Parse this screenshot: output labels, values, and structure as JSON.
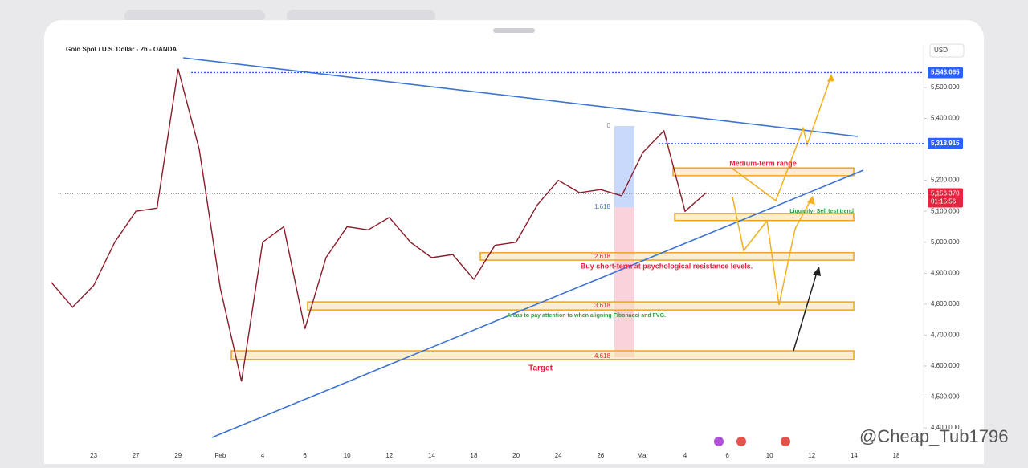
{
  "currency": "USD",
  "watermark": "@Cheap_Tub1796",
  "chart_data": {
    "type": "line",
    "title": "Gold Spot / U.S. Dollar - 2h - OANDA",
    "color": "#8a1c2b",
    "categories": [
      null,
      null,
      "23",
      null,
      "27",
      null,
      "29",
      null,
      "Feb",
      null,
      "4",
      null,
      "6",
      null,
      "10",
      null,
      "12",
      null,
      "14",
      null,
      "18",
      null,
      "20",
      null,
      "24",
      null,
      "26",
      null,
      "Mar",
      null,
      "4",
      null,
      "6",
      null,
      "10",
      null,
      "12",
      null,
      "14",
      null,
      "18"
    ],
    "values": [
      4870,
      4790,
      4860,
      5000,
      5100,
      5110,
      5560,
      5300,
      4850,
      4550,
      5000,
      5050,
      4720,
      4950,
      5050,
      5040,
      5080,
      5000,
      4950,
      4960,
      4880,
      4990,
      5000,
      5120,
      5200,
      5160,
      5170,
      5150,
      5290,
      5360,
      5100,
      5160,
      null,
      null,
      null,
      null,
      null,
      null,
      null,
      null,
      null
    ],
    "ylim": [
      4330,
      5640
    ],
    "yticks": [
      {
        "value": 5500,
        "label": "5,500.000"
      },
      {
        "value": 5400,
        "label": "5,400.000"
      },
      {
        "value": 5200,
        "label": "5,200.000"
      },
      {
        "value": 5100,
        "label": "5,100.000"
      },
      {
        "value": 5000,
        "label": "5,000.000"
      },
      {
        "value": 4900,
        "label": "4,900.000"
      },
      {
        "value": 4800,
        "label": "4,800.000"
      },
      {
        "value": 4700,
        "label": "4,700.000"
      },
      {
        "value": 4600,
        "label": "4,600.000"
      },
      {
        "value": 4500,
        "label": "4,500.000"
      },
      {
        "value": 4400,
        "label": "4,400.000"
      }
    ],
    "levels": [
      {
        "value": 5548.065,
        "label": "5,548.065"
      },
      {
        "value": 5318.915,
        "label": "5,318.915"
      }
    ],
    "last_price": {
      "value": 5156.37,
      "label": "5,156.370",
      "timer": "01:15:56"
    },
    "zones": [
      [
        5215,
        5240
      ],
      [
        5070,
        5093
      ],
      [
        4942,
        4966
      ],
      [
        4781,
        4807
      ],
      [
        4621,
        4649
      ]
    ],
    "fib_labels": [
      "0",
      "1.618",
      "2.618",
      "3.618",
      "4.618"
    ],
    "annotations": [
      "Medium-term range",
      "Liquidity- Sell test trend",
      "Buy short-term at psychological resistance levels.",
      "Areas to pay attention to when aligning Fibonacci and FVG.",
      "Target"
    ]
  }
}
